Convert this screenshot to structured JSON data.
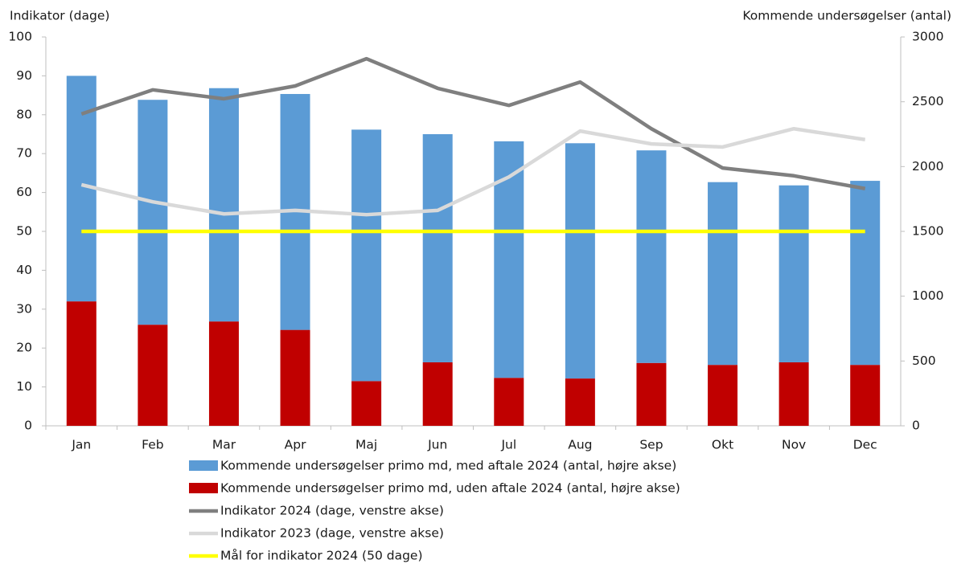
{
  "chart_data": {
    "type": "bar",
    "y_label": "Indikator (dage)",
    "y2_label": "Kommende undersøgelser (antal)",
    "categories": [
      "Jan",
      "Feb",
      "Mar",
      "Apr",
      "Maj",
      "Jun",
      "Jul",
      "Aug",
      "Sep",
      "Okt",
      "Nov",
      "Dec"
    ],
    "series": [
      {
        "name": "Kommende undersøgelser primo md, med aftale 2024 (antal, højre akse)",
        "type": "bar",
        "axis": "y2",
        "color": "#5b9bd5",
        "values": [
          1740,
          1735,
          1800,
          1820,
          1940,
          1760,
          1825,
          1815,
          1640,
          1410,
          1365,
          1420
        ]
      },
      {
        "name": "Kommende undersøgelser primo md, uden aftale 2024 (antal, højre akse)",
        "type": "bar",
        "axis": "y2",
        "color": "#c00000",
        "values": [
          960,
          780,
          805,
          740,
          345,
          490,
          370,
          365,
          485,
          470,
          490,
          470
        ]
      },
      {
        "name": "Indikator 2024 (dage, venstre akse)",
        "type": "line",
        "axis": "y",
        "color": "#7f7f7f",
        "values": [
          80.2,
          86.4,
          84.1,
          87.4,
          94.4,
          86.8,
          82.4,
          88.4,
          76.4,
          66.3,
          64.3,
          61.0
        ]
      },
      {
        "name": "Indikator 2023 (dage, venstre akse)",
        "type": "line",
        "axis": "y",
        "color": "#d9d9d9",
        "values": [
          62.0,
          57.6,
          54.5,
          55.4,
          54.3,
          55.4,
          64.0,
          75.8,
          72.5,
          71.7,
          76.4,
          73.6
        ]
      },
      {
        "name": "Mål for indikator 2024 (50 dage)",
        "type": "line",
        "axis": "y",
        "color": "#ffff00",
        "values": [
          50,
          50,
          50,
          50,
          50,
          50,
          50,
          50,
          50,
          50,
          50,
          50
        ]
      }
    ],
    "ylim": [
      0,
      100
    ],
    "yticks": [
      0,
      10,
      20,
      30,
      40,
      50,
      60,
      70,
      80,
      90,
      100
    ],
    "y2lim": [
      0,
      3000
    ],
    "y2ticks": [
      0,
      500,
      1000,
      1500,
      2000,
      2500,
      3000
    ],
    "legend": "bottom"
  }
}
